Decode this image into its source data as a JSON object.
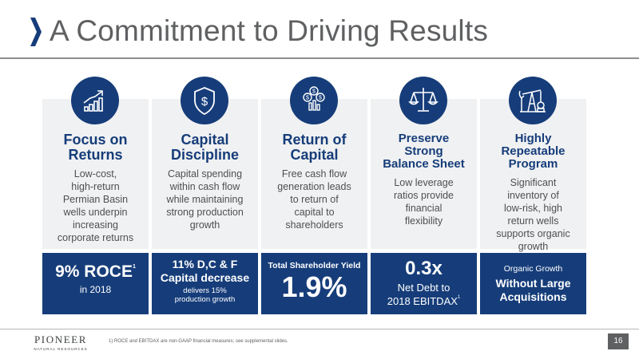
{
  "slide": {
    "title": "A Commitment to Driving Results"
  },
  "columns": [
    {
      "icon": "bar-chart-growth-icon",
      "heading": [
        "Focus on",
        "Returns"
      ],
      "body": [
        "Low-cost,",
        "high-return",
        "Permian Basin",
        "wells underpin",
        "increasing",
        "corporate returns"
      ],
      "box": {
        "metric": "9% ROCE",
        "sup": "1",
        "sub": "in 2018"
      }
    },
    {
      "icon": "dollar-shield-icon",
      "heading": [
        "Capital",
        "Discipline"
      ],
      "body": [
        "Capital spending",
        "within cash flow",
        "while maintaining",
        "strong production",
        "growth"
      ],
      "box": {
        "line1": "11% D,C & F",
        "line2": "Capital decrease",
        "sub1": "delivers 15%",
        "sub2": "production growth"
      }
    },
    {
      "icon": "coins-bars-icon",
      "heading": [
        "Return of",
        "Capital"
      ],
      "body": [
        "Free cash flow",
        "generation leads",
        "to return of",
        "capital to",
        "shareholders"
      ],
      "box": {
        "label": "Total Shareholder Yield",
        "metric": "1.9%"
      }
    },
    {
      "icon": "balance-scale-icon",
      "heading": [
        "Preserve",
        "Strong",
        "Balance Sheet"
      ],
      "body": [
        "Low leverage",
        "ratios provide",
        "financial",
        "flexibility"
      ],
      "box": {
        "metric": "0.3x",
        "sub1": "Net Debt to",
        "sub2": "2018 EBITDAX",
        "sup": "1"
      }
    },
    {
      "icon": "pump-jack-icon",
      "heading": [
        "Highly",
        "Repeatable",
        "Program"
      ],
      "body": [
        "Significant",
        "inventory of",
        "low-risk, high",
        "return wells",
        "supports organic",
        "growth"
      ],
      "box": {
        "label": "Organic Growth",
        "line1": "Without Large",
        "line2": "Acquisitions"
      }
    }
  ],
  "footer": {
    "logo_main": "PIONEER",
    "logo_sub": "NATURAL RESOURCES",
    "footnote": "1) ROCE and EBITDAX are non-GAAP financial measures; see supplemental slides.",
    "page_number": "16"
  },
  "colors": {
    "navy": "#163d7a",
    "title_gray": "#5f6062",
    "panel_gray": "#f0f1f2"
  }
}
